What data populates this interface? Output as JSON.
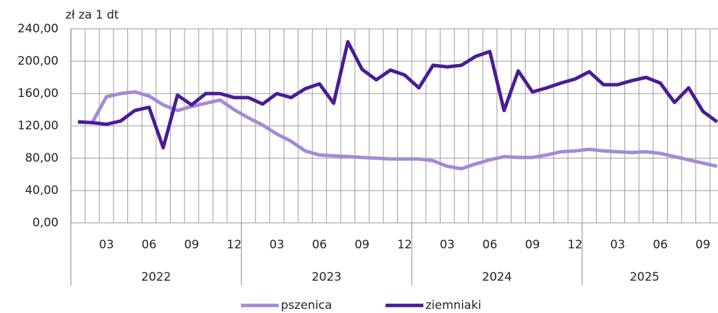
{
  "chart_data": {
    "type": "line",
    "y_axis_label": "zł za 1 dt",
    "categories": [
      null,
      null,
      "03",
      null,
      null,
      "06",
      null,
      null,
      "09",
      null,
      null,
      "12",
      null,
      null,
      "03",
      null,
      null,
      "06",
      null,
      null,
      "09",
      null,
      null,
      "12",
      null,
      null,
      "03",
      null,
      null,
      "06",
      null,
      null,
      "09",
      null,
      null,
      "12",
      null,
      null,
      "03",
      null,
      null,
      "06",
      null,
      null,
      "09",
      null
    ],
    "years": [
      "2022",
      "2023",
      "2024",
      "2025"
    ],
    "series": [
      {
        "name": "pszenica",
        "color": "#a48ad6",
        "values": [
          125,
          124,
          156,
          160,
          162,
          157,
          146,
          139,
          144,
          148,
          152,
          140,
          130,
          121,
          110,
          101,
          89,
          84,
          83,
          82,
          81,
          80,
          79,
          79,
          79,
          77,
          70,
          67,
          73,
          78,
          82,
          81,
          81,
          84,
          88,
          89,
          91,
          89,
          88,
          87,
          88,
          86,
          82,
          78,
          74,
          70
        ]
      },
      {
        "name": "ziemniaki",
        "color": "#4a1c96",
        "values": [
          125,
          124,
          122,
          126,
          139,
          143,
          93,
          158,
          146,
          160,
          160,
          155,
          155,
          147,
          160,
          155,
          166,
          172,
          148,
          224,
          190,
          177,
          189,
          183,
          167,
          195,
          193,
          195,
          206,
          212,
          139,
          188,
          162,
          167,
          173,
          178,
          187,
          171,
          171,
          176,
          180,
          173,
          149,
          167,
          138,
          125
        ]
      }
    ],
    "ylim": [
      0,
      240
    ],
    "yticks": [
      {
        "value": 0,
        "label": "0,00"
      },
      {
        "value": 40,
        "label": "40,00"
      },
      {
        "value": 80,
        "label": "80,00"
      },
      {
        "value": 120,
        "label": "120,00"
      },
      {
        "value": 160,
        "label": "160,00"
      },
      {
        "value": 200,
        "label": "200,00"
      },
      {
        "value": 240,
        "label": "240,00"
      }
    ],
    "grid": true,
    "legend": "bottom"
  }
}
